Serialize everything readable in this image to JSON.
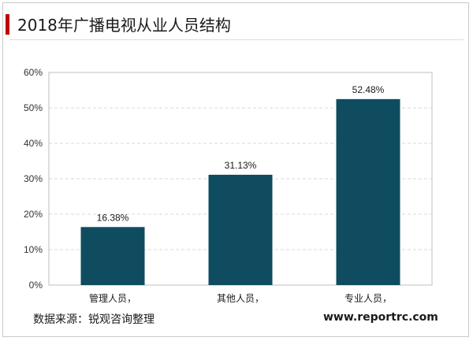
{
  "title": "2018年广播电视从业人员结构",
  "source": "数据来源：锐观咨询整理",
  "website": "www.reportrc.com",
  "colors": {
    "bar": "#0f4c60",
    "accent": "#c00000"
  },
  "chart_data": {
    "type": "bar",
    "categories": [
      "管理人员，",
      "其他人员，",
      "专业人员，"
    ],
    "values": [
      16.38,
      31.13,
      52.48
    ],
    "data_labels": [
      "16.38%",
      "31.13%",
      "52.48%"
    ],
    "y_ticks": [
      "0%",
      "10%",
      "20%",
      "30%",
      "40%",
      "50%",
      "60%"
    ],
    "ylim": [
      0,
      60
    ],
    "grid": true,
    "legend": "none"
  }
}
